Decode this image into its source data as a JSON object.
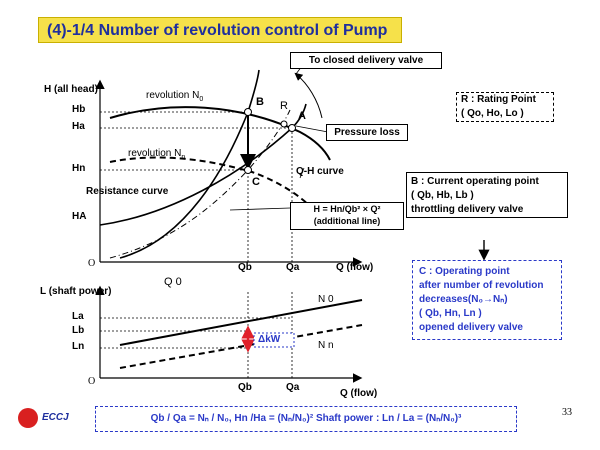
{
  "title": "(4)-1/4 Number of revolution control of Pump",
  "upper_axes": {
    "y_label": "H (all head)",
    "y_ticks": [
      "Hb",
      "Ha",
      "Hn",
      "HA"
    ],
    "x_ticks": [
      "Qb",
      "Qa"
    ],
    "x_label": "Q (flow)",
    "origin": "O"
  },
  "lower_axes": {
    "y_label": "L (shaft power)",
    "y_ticks": [
      "La",
      "Lb",
      "Ln"
    ],
    "x_ticks": [
      "Qb",
      "Qa"
    ],
    "x_label": "Q (flow)",
    "origin": "O",
    "q0": "Q 0",
    "n0": "N 0",
    "nn": "N n",
    "delta_kw": "ΔkW"
  },
  "curve_labels": {
    "revolution_n0": "revolution N",
    "revolution_n0_sub": "0",
    "revolution_nn": "revolution N",
    "revolution_nn_sub": "n",
    "resistance": "Resistance curve",
    "qh": "Q-H curve",
    "point_b": "B",
    "point_c": "C",
    "point_a": "A",
    "point_r": "R"
  },
  "callouts": {
    "closed_valve": "To closed delivery valve",
    "pressure_loss": "Pressure loss",
    "additional_line_1": "H = Hn/Qb² × Q²",
    "additional_line_2": "(additional line)"
  },
  "rating_box": {
    "line1": "R : Rating Point",
    "line2": "( Qo, Ho, Lo )"
  },
  "current_box": {
    "line1": "B : Current operating point",
    "line2": "( Qb, Hb, Lb )",
    "line3": "throttling delivery valve"
  },
  "arrow_down": "↓",
  "operating_box": {
    "line1": "C : Operating point",
    "line2": "after number of revolution",
    "line3": "decreases(N₀→Nₙ)",
    "line4": "( Qb, Hn, Ln )",
    "line5": "opened delivery valve"
  },
  "formula": "Qb / Qa = Nₙ / N₀,    Hn /Ha = (Nₙ/N₀)²    Shaft  power : Ln / La = (Nₙ/N₀)³",
  "page_number": "33",
  "logo": "ECCJ",
  "colors": {
    "title_bg": "#f6e14a",
    "title_text": "#1f2f9e",
    "box_border_blue": "#2a39c8",
    "delta_arrow": "#e0202a"
  }
}
